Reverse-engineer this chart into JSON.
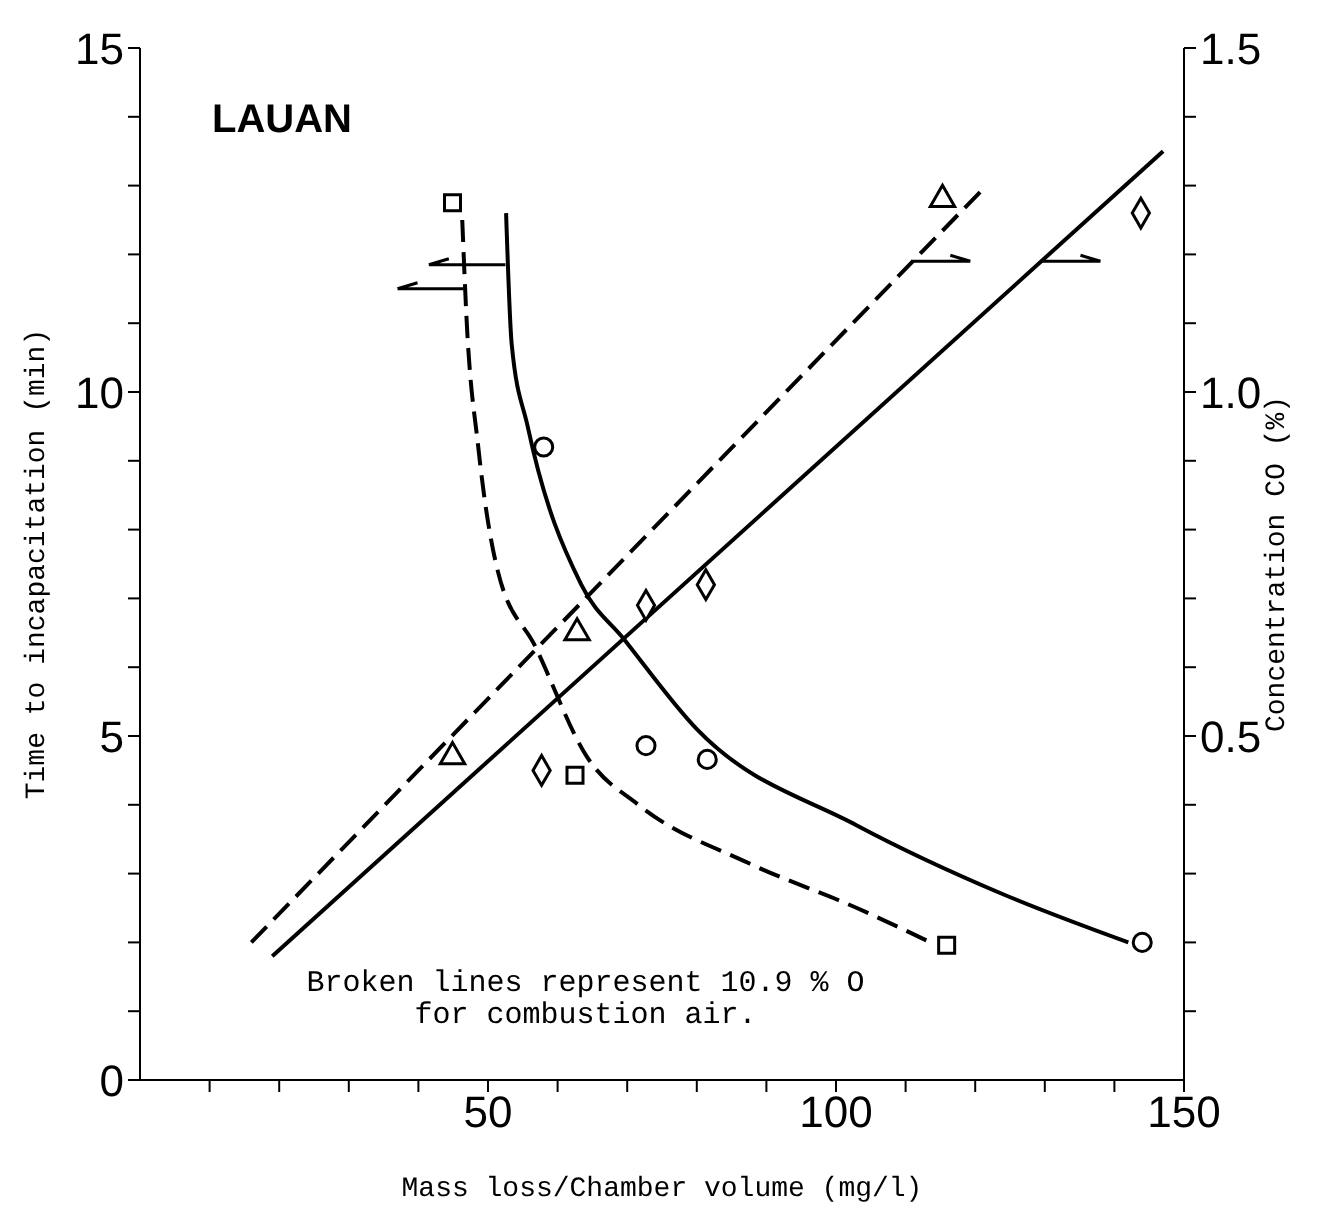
{
  "chart_data": {
    "type": "scatter",
    "title": "LAUAN",
    "xlabel": "Mass loss/Chamber volume (mg/l)",
    "ylabel": "Time to incapacitation (min)",
    "y2label": "Concentration CO (%)",
    "annotations": [
      "Broken lines represent 10.9 % O",
      "for combustion air."
    ],
    "xlim": [
      0,
      150
    ],
    "xticks": [
      {
        "value": 10,
        "label": null
      },
      {
        "value": 20,
        "label": null
      },
      {
        "value": 30,
        "label": null
      },
      {
        "value": 40,
        "label": null
      },
      50,
      {
        "value": 60,
        "label": null
      },
      {
        "value": 70,
        "label": null
      },
      {
        "value": 80,
        "label": null
      },
      {
        "value": 90,
        "label": null
      },
      100,
      {
        "value": 110,
        "label": null
      },
      {
        "value": 120,
        "label": null
      },
      {
        "value": 130,
        "label": null
      },
      {
        "value": 140,
        "label": null
      },
      150
    ],
    "ylim": [
      0,
      15
    ],
    "yticks": [
      0,
      {
        "value": 1,
        "label": null
      },
      {
        "value": 2,
        "label": null
      },
      {
        "value": 3,
        "label": null
      },
      {
        "value": 4,
        "label": null
      },
      5,
      {
        "value": 6,
        "label": null
      },
      {
        "value": 7,
        "label": null
      },
      {
        "value": 8,
        "label": null
      },
      {
        "value": 9,
        "label": null
      },
      10,
      {
        "value": 11,
        "label": null
      },
      {
        "value": 12,
        "label": null
      },
      {
        "value": 13,
        "label": null
      },
      {
        "value": 14,
        "label": null
      },
      15
    ],
    "y2lim": [
      0,
      1.5
    ],
    "y2ticks": [
      {
        "value": 0.1,
        "label": null
      },
      {
        "value": 0.2,
        "label": null
      },
      {
        "value": 0.3,
        "label": null
      },
      {
        "value": 0.4,
        "label": null
      },
      0.5,
      {
        "value": 0.6,
        "label": null
      },
      {
        "value": 0.7,
        "label": null
      },
      {
        "value": 0.8,
        "label": null
      },
      {
        "value": 0.9,
        "label": null
      },
      {
        "value": 1.0,
        "label": "1.0"
      },
      {
        "value": 1.1,
        "label": null
      },
      {
        "value": 1.2,
        "label": null
      },
      {
        "value": 1.3,
        "label": null
      },
      {
        "value": 1.4,
        "label": null
      },
      1.5
    ],
    "series": [
      {
        "marker": "square",
        "color": "#000000",
        "x": [
          44.9,
          62.5,
          115.9
        ],
        "values": [
          12.75,
          4.43,
          1.96
        ]
      },
      {
        "marker": "circle",
        "color": "#000000",
        "x": [
          58,
          72.7,
          81.5,
          144
        ],
        "values": [
          9.2,
          4.86,
          4.66,
          2.0
        ]
      },
      {
        "marker": "triangle",
        "color": "#000000",
        "axis": "y2",
        "x": [
          44.9,
          62.8,
          115.3
        ],
        "values": [
          0.47,
          0.65,
          1.28
        ]
      },
      {
        "marker": "diamond",
        "color": "#000000",
        "axis": "y2",
        "x": [
          57.7,
          72.7,
          81.3,
          143.8
        ],
        "values": [
          0.45,
          0.69,
          0.72,
          1.26
        ]
      },
      {
        "type": "line",
        "marker": "none",
        "line_style": "dashed",
        "color": "#000000",
        "x": [
          46.3,
          46.9,
          48.6,
          51.4,
          56.8,
          64.2,
          71.6,
          87.5,
          103,
          113.6
        ],
        "values": [
          12.5,
          11.1,
          9.2,
          7.4,
          6.3,
          4.7,
          4.0,
          3.15,
          2.5,
          2.0
        ]
      },
      {
        "type": "line",
        "marker": "none",
        "line_style": "solid",
        "color": "#000000",
        "x": [
          52.6,
          53.4,
          55.7,
          63.4,
          69.6,
          80,
          103,
          124,
          142
        ],
        "values": [
          12.6,
          10.7,
          9.5,
          7.2,
          6.4,
          5.1,
          3.7,
          2.7,
          2.0
        ]
      },
      {
        "type": "line",
        "marker": "none",
        "line_style": "dashed",
        "color": "#000000",
        "axis": "y2",
        "x": [
          16,
          121.6
        ],
        "values": [
          0.2,
          1.3
        ]
      },
      {
        "type": "line",
        "marker": "none",
        "line_style": "solid",
        "color": "#000000",
        "axis": "y2",
        "x": [
          19,
          147
        ],
        "values": [
          0.18,
          1.35
        ]
      }
    ]
  }
}
